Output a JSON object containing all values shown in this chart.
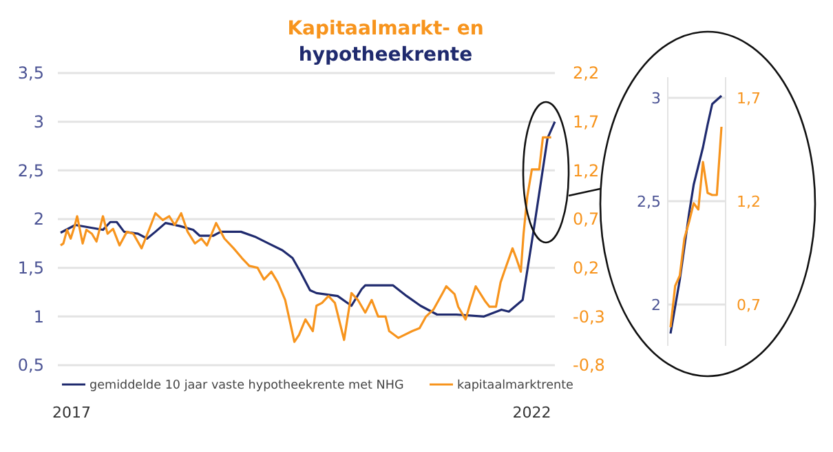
{
  "chart_data": [
    {
      "type": "line",
      "title": "Kapitaalmarkt- en\nhypotheekrente",
      "legend": "bottom",
      "grid": "y",
      "xlim": [
        2016.85,
        2022.25
      ],
      "xticks": [
        2017,
        2022
      ],
      "ylim": [
        0.5,
        3.5
      ],
      "yticks": [
        {
          "value": 0.5,
          "label": "0,5"
        },
        1,
        {
          "value": 1.5,
          "label": "1,5"
        },
        2,
        {
          "value": 2.5,
          "label": "2,5"
        },
        3,
        {
          "value": 3.5,
          "label": "3,5"
        }
      ],
      "y2lim": [
        -0.8,
        2.2
      ],
      "y2ticks": [
        {
          "value": -0.8,
          "label": "-0,8"
        },
        {
          "value": -0.3,
          "label": "-0,3"
        },
        {
          "value": 0.2,
          "label": "0,2"
        },
        {
          "value": 0.7,
          "label": "0,7"
        },
        {
          "value": 1.2,
          "label": "1,2"
        },
        {
          "value": 1.7,
          "label": "1,7"
        },
        {
          "value": 2.2,
          "label": "2,2"
        }
      ],
      "series": [
        {
          "name": "gemiddelde 10 jaar vaste hypotheekrente met NHG",
          "color": "#1f2a6e",
          "x": [
            2016.88,
            2017.04,
            2017.34,
            2017.42,
            2017.49,
            2017.57,
            2017.72,
            2017.82,
            2017.91,
            2018.02,
            2018.17,
            2018.32,
            2018.39,
            2018.54,
            2018.62,
            2018.84,
            2018.99,
            2019.14,
            2019.29,
            2019.4,
            2019.49,
            2019.59,
            2019.66,
            2019.89,
            2020.04,
            2020.15,
            2020.19,
            2020.49,
            2020.64,
            2020.79,
            2020.97,
            2021.04,
            2021.18,
            2021.48,
            2021.67,
            2021.75,
            2021.9,
            2022.02,
            2022.17,
            2022.25
          ],
          "values": [
            1.86,
            1.94,
            1.89,
            1.97,
            1.97,
            1.87,
            1.85,
            1.8,
            1.87,
            1.96,
            1.93,
            1.89,
            1.83,
            1.83,
            1.87,
            1.87,
            1.82,
            1.75,
            1.68,
            1.6,
            1.45,
            1.27,
            1.24,
            1.21,
            1.11,
            1.28,
            1.32,
            1.32,
            1.21,
            1.11,
            1.02,
            1.02,
            1.02,
            1.0,
            1.07,
            1.05,
            1.17,
            1.89,
            2.83,
            3.0
          ]
        },
        {
          "name": "kapitaalmarktrente",
          "color": "#f7941d",
          "axis": "y2",
          "x": [
            2016.88,
            2016.91,
            2016.95,
            2016.99,
            2017.03,
            2017.06,
            2017.12,
            2017.16,
            2017.22,
            2017.27,
            2017.34,
            2017.39,
            2017.45,
            2017.52,
            2017.6,
            2017.67,
            2017.76,
            2017.84,
            2017.91,
            2017.99,
            2018.06,
            2018.12,
            2018.19,
            2018.26,
            2018.34,
            2018.41,
            2018.47,
            2018.57,
            2018.66,
            2018.76,
            2018.85,
            2018.93,
            2019.02,
            2019.09,
            2019.17,
            2019.24,
            2019.32,
            2019.42,
            2019.47,
            2019.54,
            2019.62,
            2019.66,
            2019.72,
            2019.79,
            2019.86,
            2019.96,
            2020.04,
            2020.11,
            2020.19,
            2020.26,
            2020.33,
            2020.41,
            2020.45,
            2020.55,
            2020.7,
            2020.78,
            2020.85,
            2020.93,
            2021.03,
            2021.07,
            2021.16,
            2021.2,
            2021.28,
            2021.32,
            2021.39,
            2021.49,
            2021.54,
            2021.61,
            2021.66,
            2021.7,
            2021.79,
            2021.83,
            2021.88,
            2021.91,
            2021.95,
            2022.0,
            2022.04,
            2022.08,
            2022.12,
            2022.16,
            2022.21
          ],
          "values": [
            0.43,
            0.45,
            0.59,
            0.5,
            0.62,
            0.73,
            0.45,
            0.59,
            0.55,
            0.47,
            0.73,
            0.55,
            0.6,
            0.43,
            0.57,
            0.55,
            0.4,
            0.59,
            0.76,
            0.69,
            0.73,
            0.64,
            0.76,
            0.57,
            0.45,
            0.5,
            0.43,
            0.66,
            0.5,
            0.4,
            0.3,
            0.22,
            0.2,
            0.08,
            0.16,
            0.05,
            -0.13,
            -0.56,
            -0.49,
            -0.33,
            -0.45,
            -0.19,
            -0.16,
            -0.09,
            -0.16,
            -0.54,
            -0.06,
            -0.13,
            -0.26,
            -0.13,
            -0.3,
            -0.3,
            -0.45,
            -0.52,
            -0.45,
            -0.42,
            -0.3,
            -0.23,
            -0.06,
            0.01,
            -0.07,
            -0.2,
            -0.33,
            -0.2,
            0.01,
            -0.14,
            -0.2,
            -0.2,
            0.05,
            0.16,
            0.4,
            0.3,
            0.16,
            0.55,
            0.93,
            1.21,
            1.21,
            1.21,
            1.54,
            1.54,
            1.54
          ]
        }
      ]
    },
    {
      "type": "line",
      "tick_labels": "y",
      "grid": "y",
      "categories": [
        null,
        null,
        null,
        null,
        null,
        null,
        null,
        null,
        null,
        null,
        null,
        null
      ],
      "ylim": [
        1.8,
        3.1
      ],
      "yticks": [
        2,
        {
          "value": 2.5,
          "label": "2,5"
        },
        3
      ],
      "y2lim": [
        0.5,
        1.8
      ],
      "y2ticks": [
        {
          "value": 0.7,
          "label": "0,7"
        },
        {
          "value": 1.2,
          "label": "1,2"
        },
        {
          "value": 1.7,
          "label": "1,7"
        }
      ],
      "series": [
        {
          "color": "#1f2a6e",
          "values": [
            1.86,
            1.99,
            2.12,
            2.28,
            2.44,
            2.58,
            2.67,
            2.76,
            2.87,
            2.97,
            2.99,
            3.01
          ]
        },
        {
          "color": "#f7941d",
          "axis": "y2",
          "values": [
            0.59,
            0.79,
            0.84,
            1.02,
            1.1,
            1.19,
            1.16,
            1.39,
            1.24,
            1.23,
            1.23,
            1.56
          ]
        }
      ]
    }
  ]
}
